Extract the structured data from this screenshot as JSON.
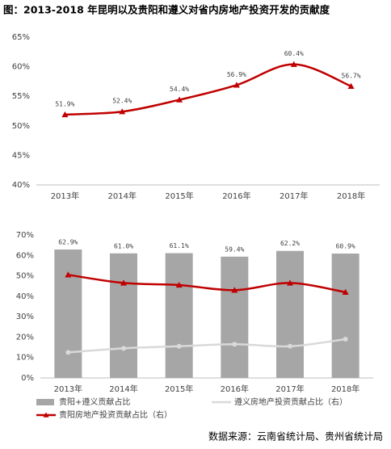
{
  "title": "图：2013-2018 年昆明以及贵阳和遵义对省内房地产投资开发的贡献度",
  "source": "数据来源：云南省统计局、贵州省统计局",
  "chart_data": [
    {
      "type": "line",
      "categories": [
        "2013年",
        "2014年",
        "2015年",
        "2016年",
        "2017年",
        "2018年"
      ],
      "values": [
        51.9,
        52.4,
        54.4,
        56.9,
        60.4,
        56.7
      ],
      "value_labels": [
        "51.9%",
        "52.4%",
        "54.4%",
        "56.9%",
        "60.4%",
        "56.7%"
      ],
      "color": "#c00000",
      "ylim": [
        40,
        65
      ],
      "yticks": [
        {
          "value": 40,
          "label": "40%"
        },
        {
          "value": 45,
          "label": "45%"
        },
        {
          "value": 50,
          "label": "50%"
        },
        {
          "value": 55,
          "label": "55%"
        },
        {
          "value": 60,
          "label": "60%"
        },
        {
          "value": 65,
          "label": "65%"
        }
      ],
      "grid": false
    },
    {
      "type": "bar",
      "categories": [
        "2013年",
        "2014年",
        "2015年",
        "2016年",
        "2017年",
        "2018年"
      ],
      "series": [
        {
          "name": "贵阳+遵义贡献占比",
          "type": "bar",
          "color": "#a6a6a6",
          "values": [
            62.9,
            61.0,
            61.1,
            59.4,
            62.2,
            60.9
          ],
          "value_labels": [
            "62.9%",
            "61.0%",
            "61.1%",
            "59.4%",
            "62.2%",
            "60.9%"
          ]
        },
        {
          "name": "遵义房地产投资贡献占比（右）",
          "type": "line",
          "color": "#d9d9d9",
          "values": [
            12.5,
            14.5,
            15.5,
            16.5,
            15.5,
            19
          ]
        },
        {
          "name": "贵阳房地产投资贡献占比（右）",
          "type": "line",
          "color": "#c00000",
          "values": [
            50.5,
            46.5,
            45.5,
            43,
            46.5,
            42
          ]
        }
      ],
      "ylim": [
        0,
        70
      ],
      "yticks": [
        {
          "value": 0,
          "label": "0%"
        },
        {
          "value": 10,
          "label": "10%"
        },
        {
          "value": 20,
          "label": "20%"
        },
        {
          "value": 30,
          "label": "30%"
        },
        {
          "value": 40,
          "label": "40%"
        },
        {
          "value": 50,
          "label": "50%"
        },
        {
          "value": 60,
          "label": "60%"
        },
        {
          "value": 70,
          "label": "70%"
        }
      ],
      "grid": false
    }
  ]
}
